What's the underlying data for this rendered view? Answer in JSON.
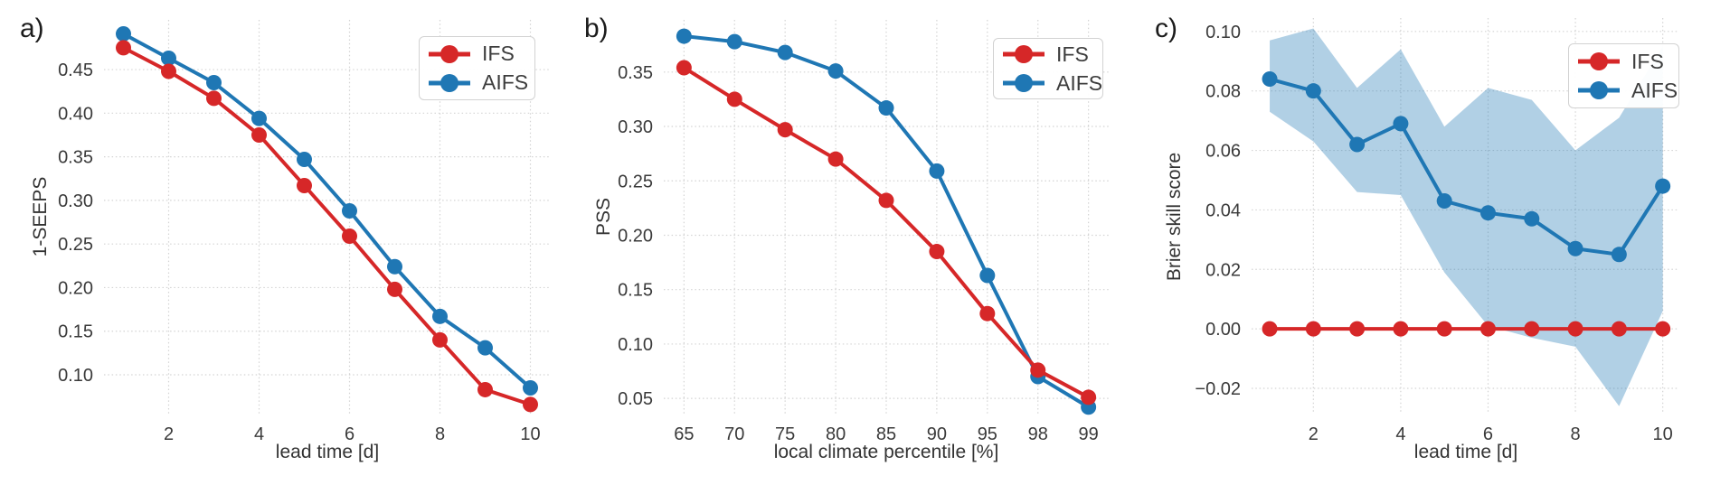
{
  "styles": {
    "background": "#ffffff",
    "grid_color": "#d4d4d4",
    "tick_color": "#3a3a3a",
    "label_color": "#333333",
    "legend_border": "#d2d2d2",
    "ifs_color": "#d62728",
    "aifs_color": "#1f77b4"
  },
  "chart_data": [
    {
      "type": "line",
      "panel_label": "a)",
      "xlabel": "lead time [d]",
      "ylabel": "1-SEEPS",
      "x": [
        1,
        2,
        3,
        4,
        5,
        6,
        7,
        8,
        9,
        10
      ],
      "xticks": [
        2,
        4,
        6,
        8,
        10
      ],
      "xtick_labels": [
        "2",
        "4",
        "6",
        "8",
        "10"
      ],
      "yticks": [
        0.1,
        0.15,
        0.2,
        0.25,
        0.3,
        0.35,
        0.4,
        0.45
      ],
      "ytick_labels": [
        "0.10",
        "0.15",
        "0.20",
        "0.25",
        "0.30",
        "0.35",
        "0.40",
        "0.45"
      ],
      "xlim": [
        0.57,
        10.43
      ],
      "ylim": [
        0.0555,
        0.507
      ],
      "grid": true,
      "legend_position": "upper right",
      "series": [
        {
          "name": "IFS",
          "color": "#d62728",
          "values": [
            0.475,
            0.448,
            0.417,
            0.375,
            0.317,
            0.259,
            0.198,
            0.14,
            0.083,
            0.066
          ]
        },
        {
          "name": "AIFS",
          "color": "#1f77b4",
          "values": [
            0.491,
            0.463,
            0.435,
            0.394,
            0.347,
            0.288,
            0.224,
            0.167,
            0.131,
            0.085
          ]
        }
      ]
    },
    {
      "type": "line",
      "panel_label": "b)",
      "xlabel": "local climate percentile [%]",
      "ylabel": "PSS",
      "x_categorical": true,
      "x": [
        65,
        70,
        75,
        80,
        85,
        90,
        95,
        98,
        99
      ],
      "xtick_labels": [
        "65",
        "70",
        "75",
        "80",
        "85",
        "90",
        "95",
        "98",
        "99"
      ],
      "yticks": [
        0.05,
        0.1,
        0.15,
        0.2,
        0.25,
        0.3,
        0.35
      ],
      "ytick_labels": [
        "0.05",
        "0.10",
        "0.15",
        "0.20",
        "0.25",
        "0.30",
        "0.35"
      ],
      "xlim": [
        -0.4,
        8.4
      ],
      "ylim": [
        0.036,
        0.398
      ],
      "grid": true,
      "legend_position": "upper right",
      "series": [
        {
          "name": "IFS",
          "color": "#d62728",
          "values": [
            0.354,
            0.325,
            0.297,
            0.27,
            0.232,
            0.185,
            0.128,
            0.076,
            0.051
          ]
        },
        {
          "name": "AIFS",
          "color": "#1f77b4",
          "values": [
            0.383,
            0.378,
            0.368,
            0.351,
            0.317,
            0.259,
            0.163,
            0.07,
            0.042
          ]
        }
      ]
    },
    {
      "type": "line",
      "panel_label": "c)",
      "xlabel": "lead time [d]",
      "ylabel": "Brier skill score",
      "x": [
        1,
        2,
        3,
        4,
        5,
        6,
        7,
        8,
        9,
        10
      ],
      "xticks": [
        2,
        4,
        6,
        8,
        10
      ],
      "xtick_labels": [
        "2",
        "4",
        "6",
        "8",
        "10"
      ],
      "yticks": [
        -0.02,
        0.0,
        0.02,
        0.04,
        0.06,
        0.08,
        0.1
      ],
      "ytick_labels": [
        "−0.02",
        "0.00",
        "0.02",
        "0.04",
        "0.06",
        "0.08",
        "0.10"
      ],
      "xlim": [
        0.585,
        10.38
      ],
      "ylim": [
        -0.0285,
        0.1045
      ],
      "grid": true,
      "legend_position": "upper right",
      "series": [
        {
          "name": "IFS",
          "color": "#d62728",
          "values": [
            0.0,
            0.0,
            0.0,
            0.0,
            0.0,
            0.0,
            0.0,
            0.0,
            0.0,
            0.0
          ]
        },
        {
          "name": "AIFS",
          "color": "#1f77b4",
          "values": [
            0.084,
            0.08,
            0.062,
            0.069,
            0.043,
            0.039,
            0.037,
            0.027,
            0.025,
            0.048
          ]
        }
      ],
      "band": {
        "series": "AIFS",
        "color": "#1f77b4",
        "opacity": 0.35,
        "upper": [
          0.097,
          0.101,
          0.081,
          0.094,
          0.068,
          0.081,
          0.077,
          0.06,
          0.071,
          0.095
        ],
        "lower": [
          0.073,
          0.063,
          0.046,
          0.045,
          0.019,
          0.001,
          -0.003,
          -0.006,
          -0.026,
          0.006
        ]
      }
    }
  ]
}
